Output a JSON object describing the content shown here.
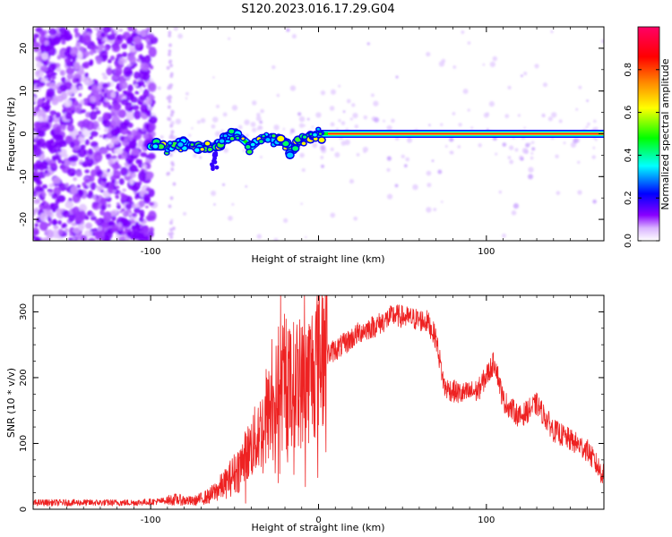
{
  "figure_title": "S120.2023.016.17.29.G04",
  "colors": {
    "snr_line": "#ee2222",
    "background": "#ffffff",
    "axis": "#000000"
  },
  "chart_data": [
    {
      "type": "heatmap",
      "title": "",
      "xlabel": "Height of straight line (km)",
      "ylabel": "Frequency (Hz)",
      "xlim": [
        -170,
        170
      ],
      "ylim": [
        -25,
        25
      ],
      "xticks": [
        -100,
        0,
        100
      ],
      "xtick_labels": [
        "-100",
        "",
        "100"
      ],
      "yticks": [
        -20,
        -10,
        0,
        10,
        20
      ],
      "ytick_labels": [
        "-20",
        "-10",
        "0",
        "10",
        "20"
      ],
      "colorbar": {
        "label": "Normalized spectral amplitude",
        "range": [
          0,
          1
        ],
        "ticks": [
          0.0,
          0.2,
          0.4,
          0.6,
          0.8
        ],
        "tick_labels": [
          "0.0",
          "0.2",
          "0.4",
          "0.6",
          "0.8"
        ],
        "colormap": [
          "#ffffff",
          "#8800ff",
          "#0000ff",
          "#00ffff",
          "#00ff00",
          "#ffff00",
          "#ff8800",
          "#ff0000",
          "#ff0066"
        ]
      },
      "ridge": {
        "x": [
          -100,
          -90,
          -80,
          -70,
          -60,
          -52,
          -46,
          -40,
          -34,
          -28,
          -22,
          -18,
          -15,
          -12,
          -8,
          -4,
          0,
          10,
          20,
          50,
          100,
          150,
          170
        ],
        "y": [
          -3,
          -3,
          -2.5,
          -3,
          -3,
          0,
          -1,
          -3,
          -1,
          -1,
          -1.5,
          -3,
          -4,
          -1.5,
          -1,
          -0.5,
          0,
          0,
          0,
          0,
          0,
          0,
          0
        ]
      }
    },
    {
      "type": "line",
      "title": "",
      "xlabel": "Height of straight line (km)",
      "ylabel": "SNR (10 * v/v)",
      "xlim": [
        -170,
        170
      ],
      "ylim": [
        0,
        325
      ],
      "xticks": [
        -100,
        0,
        100
      ],
      "xtick_labels": [
        "-100",
        "0",
        "100"
      ],
      "yticks": [
        0,
        100,
        200,
        300
      ],
      "ytick_labels": [
        "0",
        "100",
        "200",
        "300"
      ],
      "series": [
        {
          "x": [
            -170,
            -150,
            -130,
            -110,
            -95,
            -85,
            -75,
            -65,
            -55,
            -45,
            -35,
            -25,
            -15,
            -8,
            -2,
            5,
            15,
            25,
            35,
            45,
            55,
            65,
            70,
            75,
            85,
            95,
            105,
            110,
            120,
            130,
            140,
            150,
            160,
            170
          ],
          "y": [
            10,
            10,
            10,
            10,
            12,
            15,
            12,
            20,
            40,
            70,
            110,
            160,
            180,
            180,
            210,
            235,
            250,
            270,
            280,
            295,
            290,
            285,
            260,
            185,
            175,
            180,
            225,
            165,
            140,
            160,
            120,
            105,
            90,
            50
          ]
        }
      ]
    }
  ]
}
